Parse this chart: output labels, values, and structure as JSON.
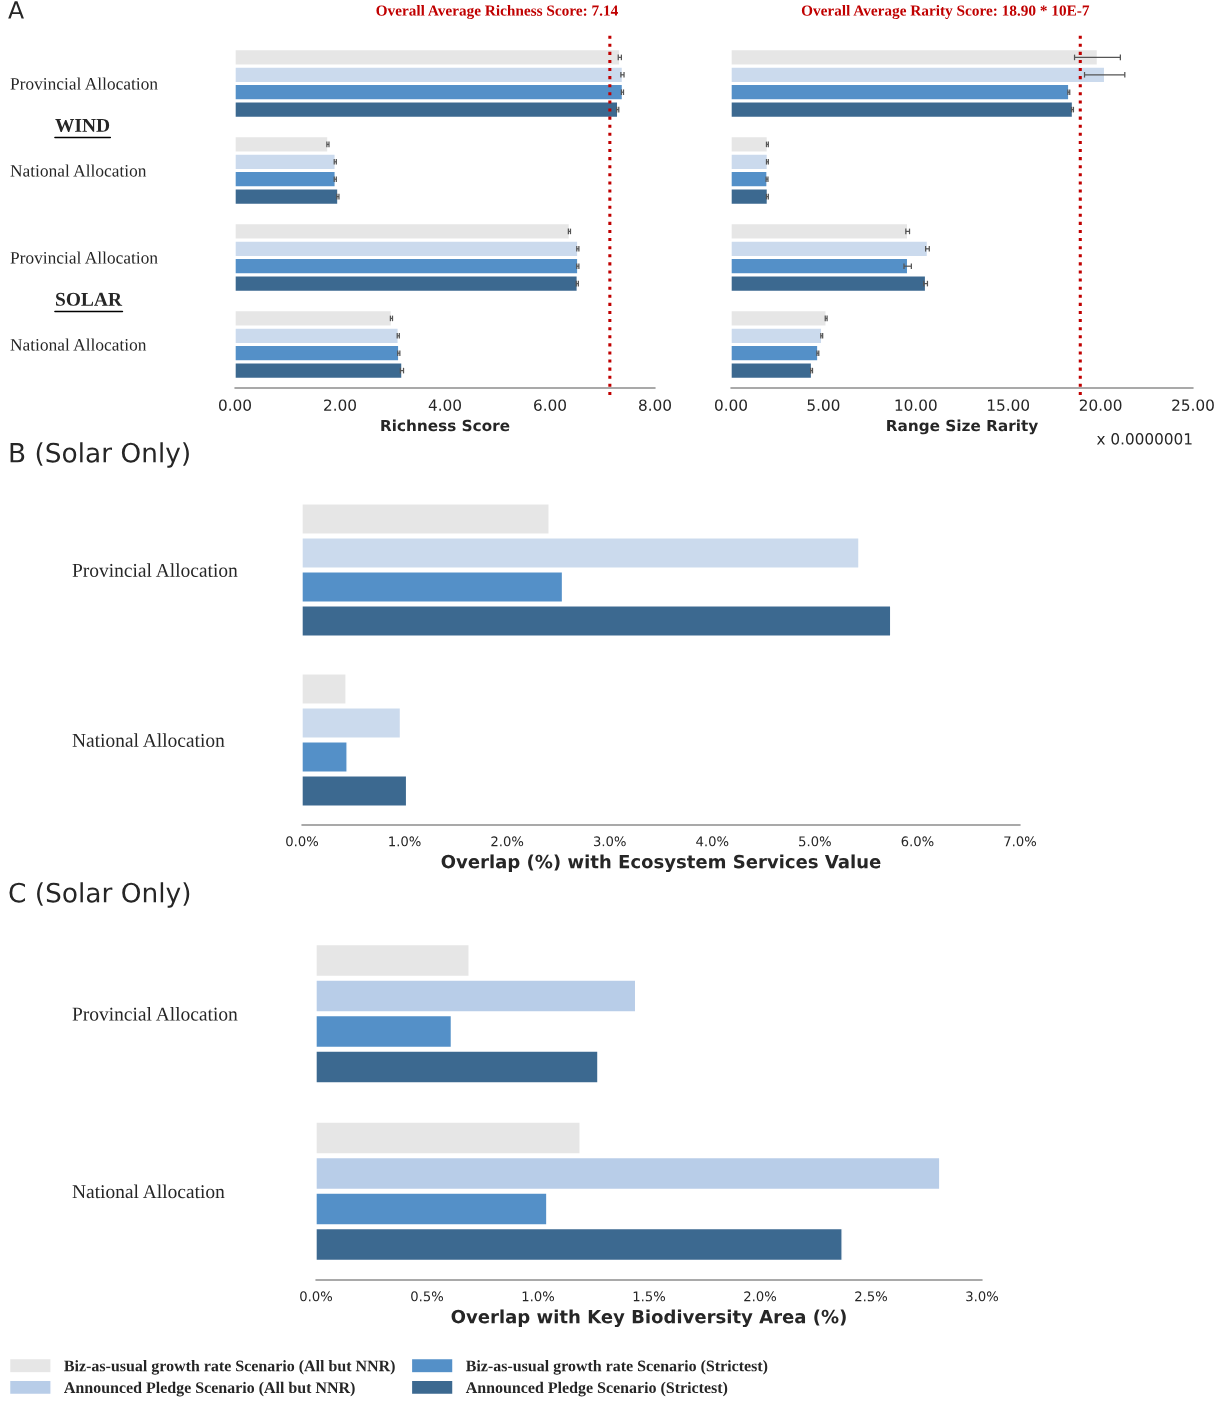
{
  "chart_data": [
    {
      "type": "bar",
      "orientation": "horizontal",
      "title": "A",
      "xlabel": "Richness Score",
      "categories": [
        "Provincial Allocation",
        "National Allocation",
        "Provincial Allocation",
        "National Allocation"
      ],
      "annotations": [
        "WIND",
        "SOLAR"
      ],
      "series": [
        {
          "color": "#e6e6e6",
          "values": [
            7.33,
            1.77,
            6.37,
            2.98
          ],
          "errors": [
            0.03,
            0.02,
            0.02,
            0.02
          ]
        },
        {
          "color": "#cbdaed",
          "values": [
            7.38,
            1.91,
            6.53,
            3.11
          ],
          "errors": [
            0.03,
            0.02,
            0.02,
            0.02
          ]
        },
        {
          "color": "#5490c8",
          "values": [
            7.38,
            1.91,
            6.53,
            3.12
          ],
          "errors": [
            0.02,
            0.02,
            0.02,
            0.02
          ]
        },
        {
          "color": "#3c6990",
          "values": [
            7.29,
            1.96,
            6.52,
            3.18
          ],
          "errors": [
            0.02,
            0.02,
            0.02,
            0.03
          ]
        }
      ],
      "xlim": [
        0,
        8
      ],
      "xticks": [
        {
          "value": 0,
          "label": "0.00"
        },
        {
          "value": 2,
          "label": "2.00"
        },
        {
          "value": 4,
          "label": "4.00"
        },
        {
          "value": 6,
          "label": "6.00"
        },
        {
          "value": 8,
          "label": "8.00"
        }
      ],
      "ref_lines": [
        {
          "axis": "x",
          "value": 7.14,
          "label": "Overall Average Richness Score: 7.14",
          "color": "#c00000",
          "line_style": "dotted"
        }
      ]
    },
    {
      "type": "bar",
      "orientation": "horizontal",
      "xlabel": "Range Size Rarity",
      "categories": [
        null,
        null,
        null,
        null
      ],
      "annotations": [
        "x 0.0000001"
      ],
      "series": [
        {
          "color": "#e6e6e6",
          "values": [
            19.83,
            1.97,
            9.56,
            5.15
          ],
          "errors": [
            1.24,
            0.05,
            0.1,
            0.05
          ]
        },
        {
          "color": "#cbdaed",
          "values": [
            20.22,
            1.97,
            10.63,
            4.91
          ],
          "errors": [
            1.09,
            0.05,
            0.1,
            0.05
          ]
        },
        {
          "color": "#5490c8",
          "values": [
            18.28,
            1.95,
            9.56,
            4.7
          ],
          "errors": [
            0.05,
            0.05,
            0.2,
            0.05
          ]
        },
        {
          "color": "#3c6990",
          "values": [
            18.48,
            1.97,
            10.53,
            4.36
          ],
          "errors": [
            0.05,
            0.05,
            0.1,
            0.05
          ]
        }
      ],
      "xlim": [
        0,
        25
      ],
      "xticks": [
        {
          "value": 0,
          "label": "0.00"
        },
        {
          "value": 5,
          "label": "5.00"
        },
        {
          "value": 10,
          "label": "10.00"
        },
        {
          "value": 15,
          "label": "15.00"
        },
        {
          "value": 20,
          "label": "20.00"
        },
        {
          "value": 25,
          "label": "25.00"
        }
      ],
      "ref_lines": [
        {
          "axis": "x",
          "value": 18.9,
          "label": "Overall Average Rarity Score: 18.90 * 10E-7",
          "color": "#c00000",
          "line_style": "dotted"
        }
      ]
    },
    {
      "type": "bar",
      "orientation": "horizontal",
      "title": "B (Solar Only)",
      "xlabel": "Overlap (%) with Ecosystem Services Value",
      "categories": [
        "Provincial Allocation",
        "National Allocation"
      ],
      "series": [
        {
          "color": "#e6e6e6",
          "values": [
            2.41,
            0.43
          ]
        },
        {
          "color": "#cbdaed",
          "values": [
            5.43,
            0.96
          ]
        },
        {
          "color": "#5490c8",
          "values": [
            2.54,
            0.44
          ]
        },
        {
          "color": "#3c6990",
          "values": [
            5.74,
            1.02
          ]
        }
      ],
      "xlim": [
        0,
        7
      ],
      "xticks": [
        {
          "value": 0,
          "label": "0.0%"
        },
        {
          "value": 1,
          "label": "1.0%"
        },
        {
          "value": 2,
          "label": "2.0%"
        },
        {
          "value": 3,
          "label": "3.0%"
        },
        {
          "value": 4,
          "label": "4.0%"
        },
        {
          "value": 5,
          "label": "5.0%"
        },
        {
          "value": 6,
          "label": "6.0%"
        },
        {
          "value": 7,
          "label": "7.0%"
        }
      ]
    },
    {
      "type": "bar",
      "orientation": "horizontal",
      "title": "C (Solar Only)",
      "xlabel": "Overlap with Key Biodiversity Area (%)",
      "categories": [
        "Provincial Allocation",
        "National Allocation"
      ],
      "series": [
        {
          "name": "Biz-as-usual growth rate Scenario (All but NNR)",
          "color": "#e6e6e6",
          "values": [
            0.69,
            1.19
          ]
        },
        {
          "name": "Announced Pledge Scenario (All but NNR)",
          "color": "#b8cde8",
          "values": [
            1.44,
            2.81
          ]
        },
        {
          "name": "Biz-as-usual growth rate Scenario (Strictest)",
          "color": "#5490c8",
          "values": [
            0.61,
            1.04
          ]
        },
        {
          "name": "Announced Pledge Scenario (Strictest)",
          "color": "#3c6990",
          "values": [
            1.27,
            2.37
          ]
        }
      ],
      "xlim": [
        0,
        3
      ],
      "xticks": [
        {
          "value": 0,
          "label": "0.0%"
        },
        {
          "value": 0.5,
          "label": "0.5%"
        },
        {
          "value": 1,
          "label": "1.0%"
        },
        {
          "value": 1.5,
          "label": "1.5%"
        },
        {
          "value": 2,
          "label": "2.0%"
        },
        {
          "value": 2.5,
          "label": "2.5%"
        },
        {
          "value": 3,
          "label": "3.0%"
        }
      ],
      "legend": "bottom left"
    }
  ]
}
